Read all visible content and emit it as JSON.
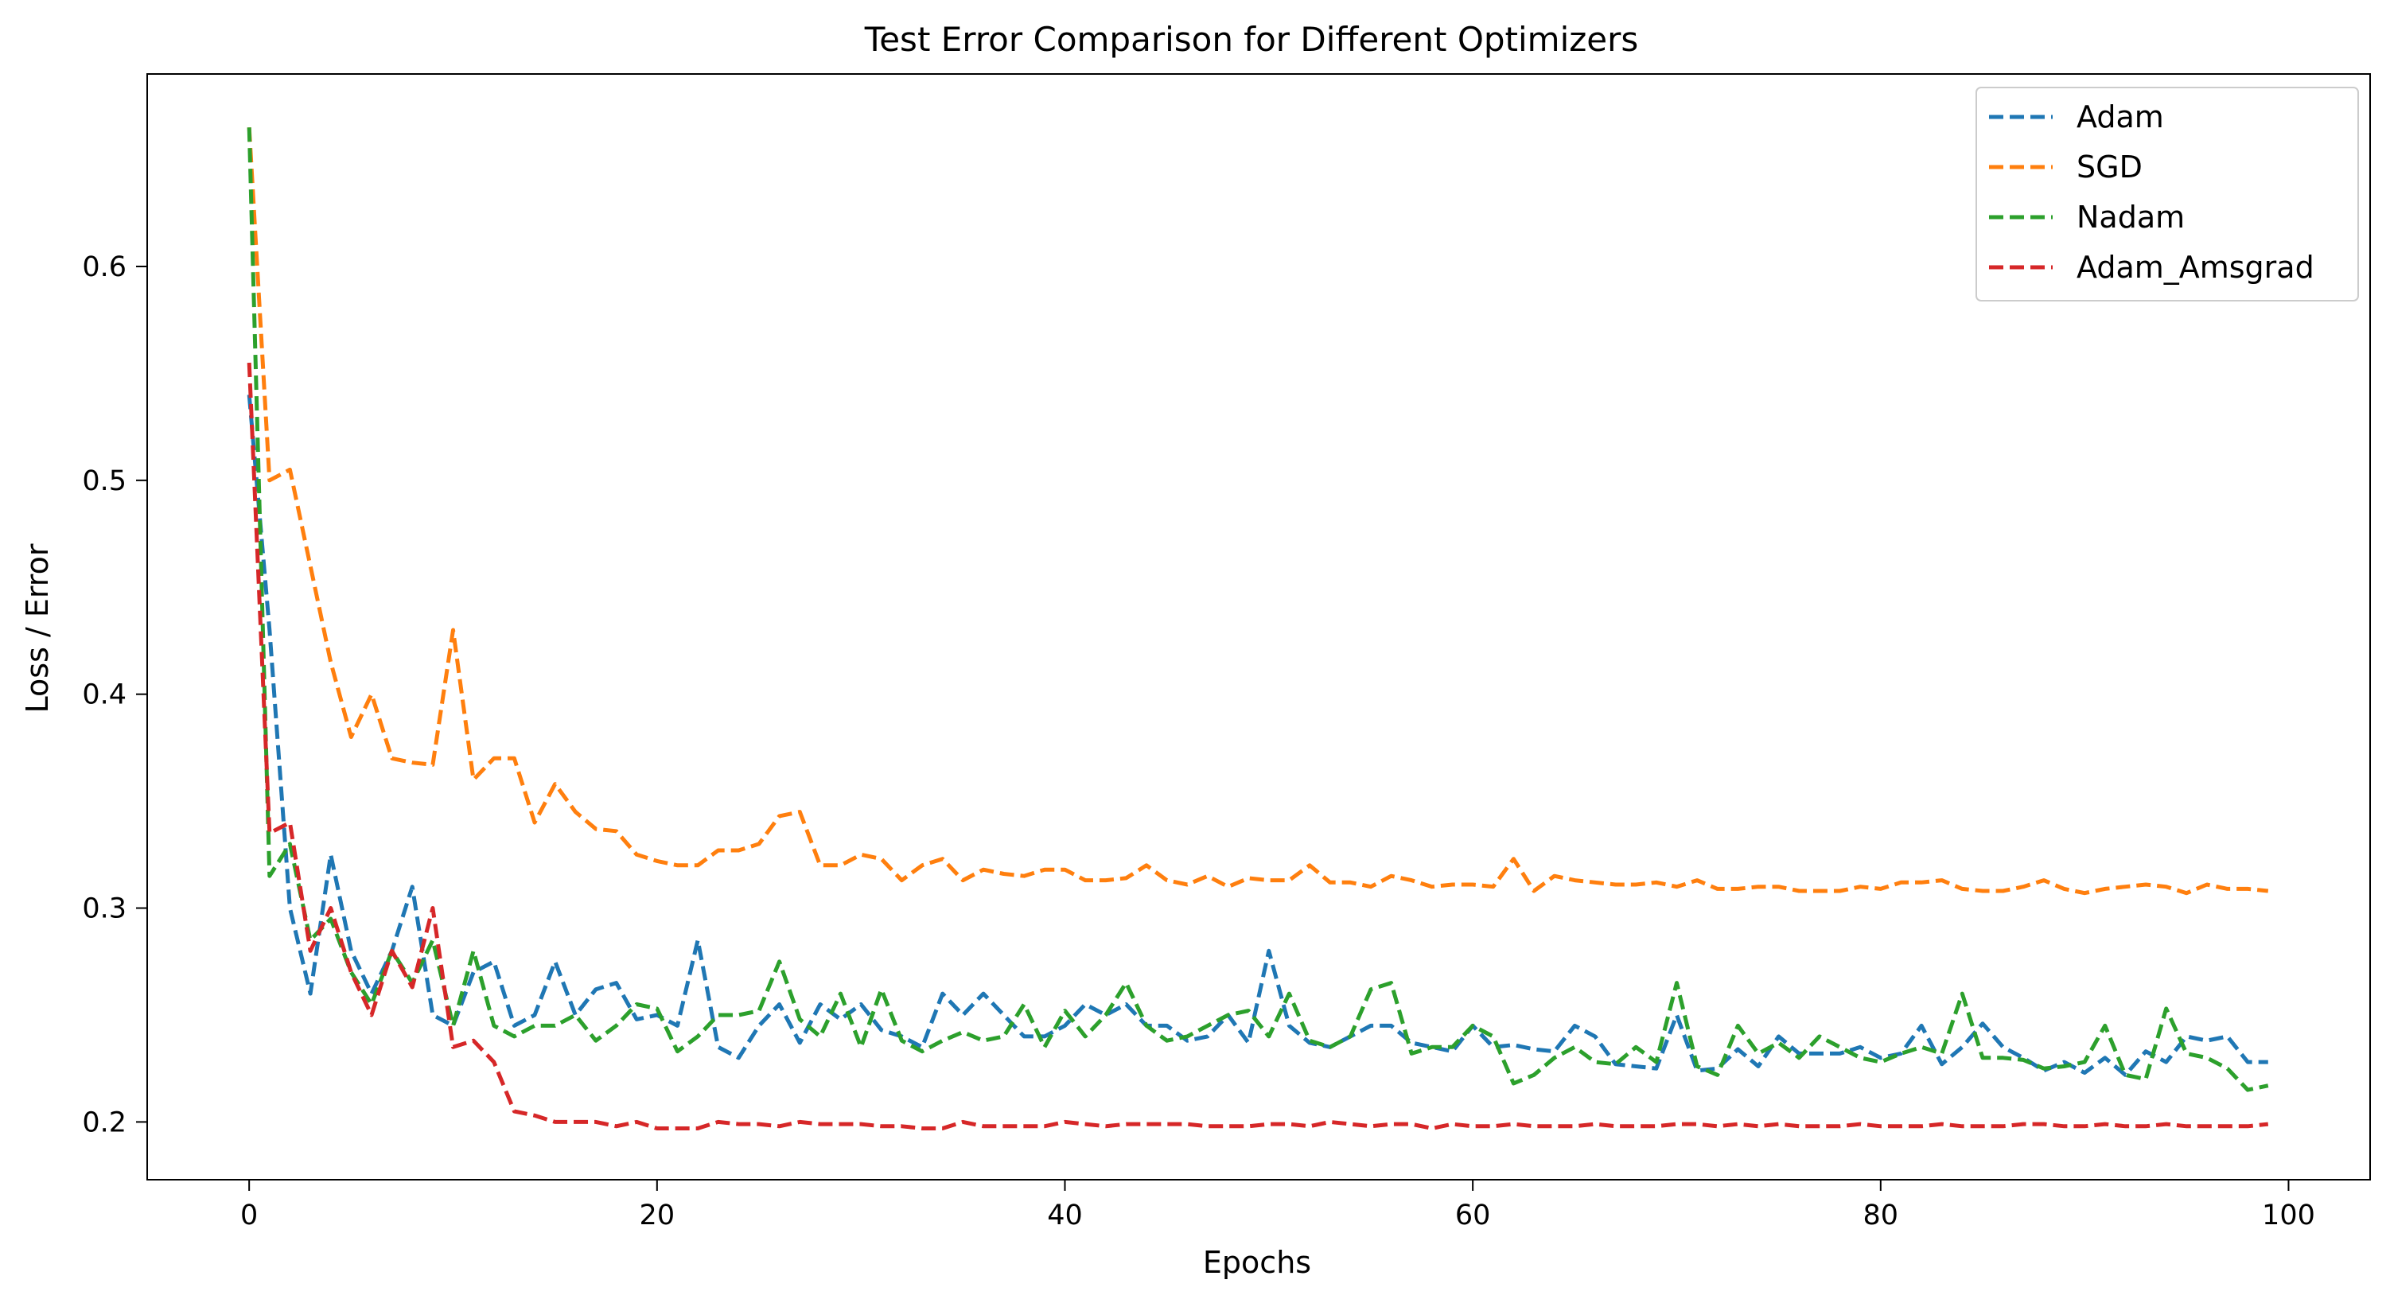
{
  "chart_data": {
    "type": "line",
    "title": "Test Error Comparison for Different Optimizers",
    "xlabel": "Epochs",
    "ylabel": "Loss / Error",
    "xlim": [
      -5,
      104
    ],
    "ylim": [
      0.173,
      0.69
    ],
    "xticks": [
      0,
      20,
      40,
      60,
      80,
      100
    ],
    "yticks": [
      0.2,
      0.3,
      0.4,
      0.5,
      0.6
    ],
    "ytick_labels": [
      "0.2",
      "0.3",
      "0.4",
      "0.5",
      "0.6"
    ],
    "line_style": "dashed",
    "grid": false,
    "legend_position": "top-right",
    "x": [
      0,
      1,
      2,
      3,
      4,
      5,
      6,
      7,
      8,
      9,
      10,
      11,
      12,
      13,
      14,
      15,
      16,
      17,
      18,
      19,
      20,
      21,
      22,
      23,
      24,
      25,
      26,
      27,
      28,
      29,
      30,
      31,
      32,
      33,
      34,
      35,
      36,
      37,
      38,
      39,
      40,
      41,
      42,
      43,
      44,
      45,
      46,
      47,
      48,
      49,
      50,
      51,
      52,
      53,
      54,
      55,
      56,
      57,
      58,
      59,
      60,
      61,
      62,
      63,
      64,
      65,
      66,
      67,
      68,
      69,
      70,
      71,
      72,
      73,
      74,
      75,
      76,
      77,
      78,
      79,
      80,
      81,
      82,
      83,
      84,
      85,
      86,
      87,
      88,
      89,
      90,
      91,
      92,
      93,
      94,
      95,
      96,
      97,
      98,
      99
    ],
    "series": [
      {
        "name": "Adam",
        "color": "#1f77b4",
        "values": [
          0.54,
          0.43,
          0.3,
          0.26,
          0.325,
          0.28,
          0.26,
          0.28,
          0.31,
          0.25,
          0.245,
          0.27,
          0.275,
          0.245,
          0.25,
          0.275,
          0.25,
          0.262,
          0.265,
          0.248,
          0.25,
          0.245,
          0.285,
          0.235,
          0.23,
          0.245,
          0.255,
          0.237,
          0.255,
          0.248,
          0.255,
          0.243,
          0.24,
          0.235,
          0.26,
          0.25,
          0.26,
          0.25,
          0.24,
          0.24,
          0.245,
          0.255,
          0.25,
          0.255,
          0.245,
          0.245,
          0.238,
          0.24,
          0.25,
          0.237,
          0.28,
          0.245,
          0.237,
          0.235,
          0.24,
          0.245,
          0.245,
          0.237,
          0.235,
          0.233,
          0.245,
          0.235,
          0.236,
          0.234,
          0.233,
          0.245,
          0.24,
          0.227,
          0.226,
          0.225,
          0.25,
          0.224,
          0.225,
          0.234,
          0.226,
          0.24,
          0.232,
          0.232,
          0.232,
          0.235,
          0.23,
          0.232,
          0.245,
          0.227,
          0.235,
          0.246,
          0.235,
          0.23,
          0.224,
          0.228,
          0.223,
          0.23,
          0.222,
          0.233,
          0.228,
          0.24,
          0.238,
          0.24,
          0.228,
          0.228
        ]
      },
      {
        "name": "SGD",
        "color": "#ff7f0e",
        "values": [
          0.665,
          0.5,
          0.505,
          0.46,
          0.415,
          0.38,
          0.4,
          0.37,
          0.368,
          0.367,
          0.43,
          0.36,
          0.37,
          0.37,
          0.34,
          0.358,
          0.345,
          0.337,
          0.336,
          0.325,
          0.322,
          0.32,
          0.32,
          0.327,
          0.327,
          0.33,
          0.343,
          0.345,
          0.32,
          0.32,
          0.325,
          0.323,
          0.313,
          0.32,
          0.323,
          0.313,
          0.318,
          0.316,
          0.315,
          0.318,
          0.318,
          0.313,
          0.313,
          0.314,
          0.32,
          0.313,
          0.311,
          0.315,
          0.31,
          0.314,
          0.313,
          0.313,
          0.32,
          0.312,
          0.312,
          0.31,
          0.315,
          0.313,
          0.31,
          0.311,
          0.311,
          0.31,
          0.323,
          0.308,
          0.315,
          0.313,
          0.312,
          0.311,
          0.311,
          0.312,
          0.31,
          0.313,
          0.309,
          0.309,
          0.31,
          0.31,
          0.308,
          0.308,
          0.308,
          0.31,
          0.309,
          0.312,
          0.312,
          0.313,
          0.309,
          0.308,
          0.308,
          0.31,
          0.313,
          0.309,
          0.307,
          0.309,
          0.31,
          0.311,
          0.31,
          0.307,
          0.311,
          0.309,
          0.309,
          0.308
        ]
      },
      {
        "name": "Nadam",
        "color": "#2ca02c",
        "values": [
          0.665,
          0.315,
          0.33,
          0.285,
          0.295,
          0.27,
          0.255,
          0.28,
          0.265,
          0.285,
          0.245,
          0.28,
          0.245,
          0.24,
          0.245,
          0.245,
          0.25,
          0.238,
          0.245,
          0.255,
          0.253,
          0.233,
          0.24,
          0.25,
          0.25,
          0.252,
          0.275,
          0.248,
          0.24,
          0.26,
          0.235,
          0.262,
          0.238,
          0.233,
          0.238,
          0.242,
          0.238,
          0.24,
          0.255,
          0.235,
          0.252,
          0.24,
          0.25,
          0.265,
          0.245,
          0.238,
          0.24,
          0.245,
          0.25,
          0.252,
          0.24,
          0.26,
          0.238,
          0.235,
          0.24,
          0.262,
          0.265,
          0.232,
          0.235,
          0.235,
          0.245,
          0.24,
          0.218,
          0.222,
          0.23,
          0.235,
          0.228,
          0.227,
          0.235,
          0.228,
          0.265,
          0.226,
          0.222,
          0.245,
          0.232,
          0.237,
          0.23,
          0.24,
          0.235,
          0.23,
          0.228,
          0.232,
          0.235,
          0.232,
          0.26,
          0.23,
          0.23,
          0.229,
          0.225,
          0.226,
          0.228,
          0.245,
          0.222,
          0.22,
          0.253,
          0.232,
          0.23,
          0.225,
          0.215,
          0.217
        ]
      },
      {
        "name": "Adam_Amsgrad",
        "color": "#d62728",
        "values": [
          0.555,
          0.335,
          0.34,
          0.28,
          0.3,
          0.27,
          0.25,
          0.28,
          0.263,
          0.3,
          0.235,
          0.238,
          0.228,
          0.205,
          0.203,
          0.2,
          0.2,
          0.2,
          0.198,
          0.2,
          0.197,
          0.197,
          0.197,
          0.2,
          0.199,
          0.199,
          0.198,
          0.2,
          0.199,
          0.199,
          0.199,
          0.198,
          0.198,
          0.197,
          0.197,
          0.2,
          0.198,
          0.198,
          0.198,
          0.198,
          0.2,
          0.199,
          0.198,
          0.199,
          0.199,
          0.199,
          0.199,
          0.198,
          0.198,
          0.198,
          0.199,
          0.199,
          0.198,
          0.2,
          0.199,
          0.198,
          0.199,
          0.199,
          0.197,
          0.199,
          0.198,
          0.198,
          0.199,
          0.198,
          0.198,
          0.198,
          0.199,
          0.198,
          0.198,
          0.198,
          0.199,
          0.199,
          0.198,
          0.199,
          0.198,
          0.199,
          0.198,
          0.198,
          0.198,
          0.199,
          0.198,
          0.198,
          0.198,
          0.199,
          0.198,
          0.198,
          0.198,
          0.199,
          0.199,
          0.198,
          0.198,
          0.199,
          0.198,
          0.198,
          0.199,
          0.198,
          0.198,
          0.198,
          0.198,
          0.199
        ]
      }
    ]
  }
}
